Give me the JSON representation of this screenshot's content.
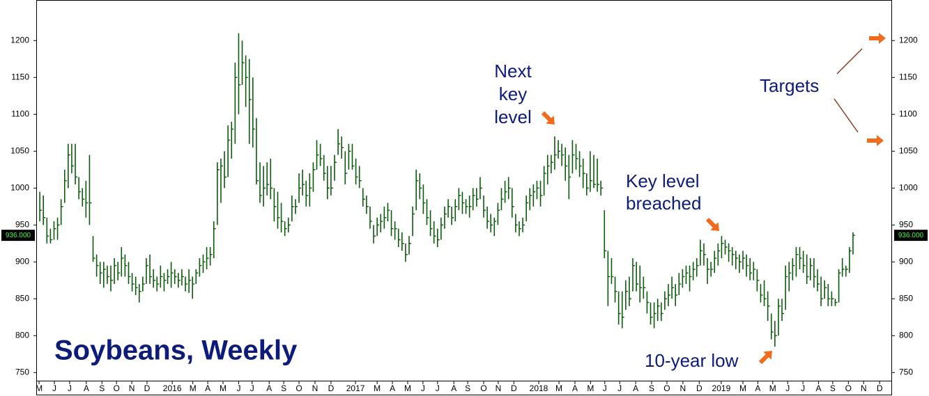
{
  "chart_data": {
    "type": "ohlc",
    "title": "Soybeans, Weekly",
    "color": "#0b5a0b",
    "ylim": [
      738,
      1255
    ],
    "yticks": [
      750,
      800,
      850,
      900,
      950,
      1000,
      1050,
      1100,
      1150,
      1200
    ],
    "xlim": [
      0,
      241
    ],
    "xticks": [
      {
        "value": 0.8,
        "label": "M"
      },
      {
        "value": 5.1,
        "label": "J"
      },
      {
        "value": 9.4,
        "label": "J"
      },
      {
        "value": 14.1,
        "label": "A"
      },
      {
        "value": 18.5,
        "label": "S"
      },
      {
        "value": 22.6,
        "label": "O"
      },
      {
        "value": 26.9,
        "label": "N"
      },
      {
        "value": 31.2,
        "label": "D"
      },
      {
        "value": 38.3,
        "label": "2016"
      },
      {
        "value": 44.1,
        "label": "M"
      },
      {
        "value": 48.3,
        "label": "A"
      },
      {
        "value": 52.6,
        "label": "M"
      },
      {
        "value": 57.0,
        "label": "J"
      },
      {
        "value": 60.8,
        "label": "J"
      },
      {
        "value": 65.6,
        "label": "A"
      },
      {
        "value": 69.7,
        "label": "S"
      },
      {
        "value": 74.0,
        "label": "O"
      },
      {
        "value": 78.5,
        "label": "N"
      },
      {
        "value": 83.0,
        "label": "D"
      },
      {
        "value": 89.9,
        "label": "2017"
      },
      {
        "value": 96.0,
        "label": "M"
      },
      {
        "value": 100.3,
        "label": "A"
      },
      {
        "value": 104.6,
        "label": "M"
      },
      {
        "value": 108.9,
        "label": "J"
      },
      {
        "value": 113.0,
        "label": "J"
      },
      {
        "value": 117.6,
        "label": "A"
      },
      {
        "value": 121.5,
        "label": "S"
      },
      {
        "value": 126.0,
        "label": "O"
      },
      {
        "value": 130.1,
        "label": "N"
      },
      {
        "value": 134.5,
        "label": "D"
      },
      {
        "value": 141.5,
        "label": "2018"
      },
      {
        "value": 147.2,
        "label": "M"
      },
      {
        "value": 151.7,
        "label": "A"
      },
      {
        "value": 156.1,
        "label": "M"
      },
      {
        "value": 160.1,
        "label": "J"
      },
      {
        "value": 164.3,
        "label": "J"
      },
      {
        "value": 168.8,
        "label": "A"
      },
      {
        "value": 173.3,
        "label": "S"
      },
      {
        "value": 177.6,
        "label": "O"
      },
      {
        "value": 182.1,
        "label": "N"
      },
      {
        "value": 186.7,
        "label": "D"
      },
      {
        "value": 192.9,
        "label": "2019"
      },
      {
        "value": 199.0,
        "label": "M"
      },
      {
        "value": 203.2,
        "label": "A"
      },
      {
        "value": 207.4,
        "label": "M"
      },
      {
        "value": 211.6,
        "label": "J"
      },
      {
        "value": 215.9,
        "label": "J"
      },
      {
        "value": 220.3,
        "label": "A"
      },
      {
        "value": 224.3,
        "label": "S"
      },
      {
        "value": 228.7,
        "label": "O"
      },
      {
        "value": 233.0,
        "label": "N"
      },
      {
        "value": 237.5,
        "label": "D"
      }
    ],
    "last_price": {
      "value": 936,
      "label": "936.000"
    },
    "high": [
      995,
      990,
      960,
      945,
      955,
      960,
      985,
      1025,
      1060,
      1060,
      1060,
      1015,
      1000,
      1010,
      1045,
      935,
      910,
      900,
      900,
      895,
      895,
      905,
      900,
      920,
      910,
      900,
      885,
      880,
      870,
      880,
      905,
      910,
      890,
      880,
      895,
      885,
      890,
      900,
      890,
      885,
      890,
      880,
      890,
      880,
      890,
      905,
      910,
      920,
      920,
      955,
      1035,
      1040,
      1050,
      1085,
      1090,
      1170,
      1210,
      1200,
      1180,
      1175,
      1150,
      1095,
      1035,
      1030,
      1035,
      1040,
      1000,
      995,
      980,
      955,
      960,
      990,
      985,
      1020,
      1025,
      1010,
      1020,
      1035,
      1065,
      1060,
      1045,
      1030,
      1030,
      1045,
      1080,
      1070,
      1050,
      1060,
      1060,
      1040,
      1030,
      1000,
      990,
      975,
      950,
      960,
      965,
      975,
      980,
      970,
      955,
      945,
      940,
      925,
      935,
      975,
      1025,
      1020,
      1005,
      985,
      970,
      955,
      945,
      960,
      975,
      985,
      975,
      985,
      1000,
      995,
      985,
      990,
      1000,
      1000,
      1015,
      990,
      975,
      965,
      960,
      980,
      1000,
      1010,
      1015,
      1000,
      965,
      955,
      960,
      990,
      1000,
      1005,
      1010,
      1010,
      1030,
      1045,
      1045,
      1070,
      1065,
      1060,
      1055,
      1045,
      1065,
      1060,
      1050,
      1040,
      1020,
      1050,
      1045,
      1040,
      1010,
      970,
      915,
      905,
      880,
      860,
      860,
      875,
      880,
      905,
      900,
      895,
      880,
      860,
      845,
      845,
      850,
      845,
      860,
      870,
      880,
      870,
      885,
      890,
      895,
      895,
      900,
      905,
      930,
      925,
      905,
      900,
      915,
      925,
      935,
      930,
      925,
      920,
      915,
      910,
      915,
      910,
      905,
      900,
      890,
      870,
      875,
      860,
      830,
      820,
      850,
      850,
      895,
      900,
      905,
      920,
      920,
      915,
      910,
      905,
      905,
      890,
      880,
      875,
      870,
      860,
      850,
      890,
      905,
      895,
      920,
      940
    ],
    "low": [
      955,
      950,
      925,
      925,
      930,
      930,
      950,
      980,
      1000,
      1020,
      1005,
      985,
      975,
      960,
      950,
      900,
      880,
      870,
      865,
      870,
      860,
      870,
      875,
      880,
      880,
      870,
      860,
      855,
      845,
      860,
      870,
      870,
      865,
      860,
      865,
      860,
      870,
      865,
      870,
      865,
      868,
      860,
      858,
      850,
      870,
      880,
      885,
      890,
      895,
      905,
      950,
      980,
      1000,
      1015,
      1040,
      1060,
      1100,
      1140,
      1110,
      1060,
      1055,
      1005,
      980,
      975,
      990,
      985,
      955,
      945,
      940,
      935,
      940,
      955,
      965,
      980,
      990,
      975,
      975,
      995,
      1025,
      1030,
      1010,
      985,
      990,
      1010,
      1045,
      1040,
      1005,
      1025,
      1025,
      1005,
      1000,
      975,
      965,
      945,
      925,
      935,
      940,
      945,
      955,
      935,
      930,
      920,
      915,
      900,
      910,
      935,
      970,
      985,
      965,
      950,
      935,
      925,
      920,
      930,
      945,
      960,
      950,
      955,
      970,
      965,
      965,
      960,
      970,
      975,
      985,
      960,
      945,
      940,
      935,
      950,
      970,
      980,
      985,
      960,
      940,
      935,
      940,
      955,
      970,
      975,
      985,
      975,
      990,
      1005,
      1020,
      1025,
      1040,
      1030,
      1010,
      985,
      1020,
      1025,
      1015,
      1000,
      990,
      995,
      1000,
      995,
      990,
      905,
      840,
      870,
      845,
      815,
      810,
      835,
      840,
      860,
      860,
      845,
      850,
      830,
      815,
      810,
      820,
      820,
      835,
      840,
      850,
      840,
      855,
      865,
      870,
      860,
      875,
      880,
      895,
      895,
      870,
      880,
      885,
      895,
      905,
      910,
      900,
      895,
      890,
      885,
      890,
      880,
      875,
      875,
      860,
      845,
      840,
      820,
      795,
      785,
      800,
      820,
      835,
      860,
      875,
      880,
      890,
      885,
      870,
      875,
      865,
      860,
      840,
      850,
      840,
      840,
      840,
      845,
      880,
      880,
      885,
      910
    ],
    "close": [
      970,
      960,
      935,
      930,
      945,
      950,
      975,
      1010,
      1045,
      1030,
      1015,
      995,
      985,
      980,
      980,
      905,
      895,
      885,
      890,
      880,
      875,
      895,
      885,
      905,
      895,
      880,
      870,
      865,
      860,
      870,
      895,
      880,
      875,
      870,
      880,
      875,
      880,
      885,
      880,
      875,
      880,
      870,
      875,
      870,
      885,
      895,
      900,
      905,
      910,
      945,
      1025,
      1030,
      1015,
      1065,
      1080,
      1150,
      1140,
      1170,
      1150,
      1120,
      1080,
      1010,
      990,
      1000,
      1005,
      1000,
      975,
      960,
      955,
      945,
      950,
      975,
      975,
      1000,
      1005,
      990,
      1000,
      1025,
      1045,
      1040,
      1020,
      1000,
      1000,
      1035,
      1060,
      1055,
      1020,
      1050,
      1030,
      1015,
      1010,
      985,
      975,
      955,
      935,
      950,
      955,
      960,
      970,
      945,
      945,
      930,
      925,
      910,
      925,
      965,
      1010,
      1000,
      980,
      960,
      945,
      935,
      930,
      950,
      965,
      975,
      960,
      975,
      990,
      980,
      975,
      975,
      990,
      985,
      1000,
      970,
      955,
      950,
      955,
      970,
      985,
      995,
      1000,
      975,
      950,
      945,
      950,
      980,
      990,
      995,
      1000,
      990,
      1020,
      1030,
      1035,
      1045,
      1050,
      1045,
      1030,
      1015,
      1045,
      1040,
      1030,
      1020,
      1000,
      1010,
      1005,
      1005,
      1000,
      915,
      880,
      880,
      860,
      830,
      825,
      860,
      850,
      895,
      870,
      865,
      865,
      845,
      825,
      830,
      840,
      830,
      850,
      855,
      865,
      855,
      870,
      880,
      885,
      880,
      890,
      895,
      915,
      910,
      890,
      890,
      905,
      915,
      925,
      920,
      915,
      910,
      905,
      900,
      905,
      895,
      885,
      890,
      875,
      855,
      850,
      840,
      805,
      800,
      840,
      830,
      880,
      885,
      895,
      910,
      905,
      895,
      880,
      895,
      880,
      870,
      850,
      865,
      850,
      850,
      845,
      885,
      890,
      890,
      915,
      936
    ],
    "annotations": [
      {
        "lines": [
          "Next",
          "key",
          "level"
        ]
      },
      {
        "lines": [
          "Key level",
          "breached"
        ]
      },
      {
        "lines": [
          "Targets"
        ]
      },
      {
        "lines": [
          "10-year low"
        ]
      }
    ]
  }
}
